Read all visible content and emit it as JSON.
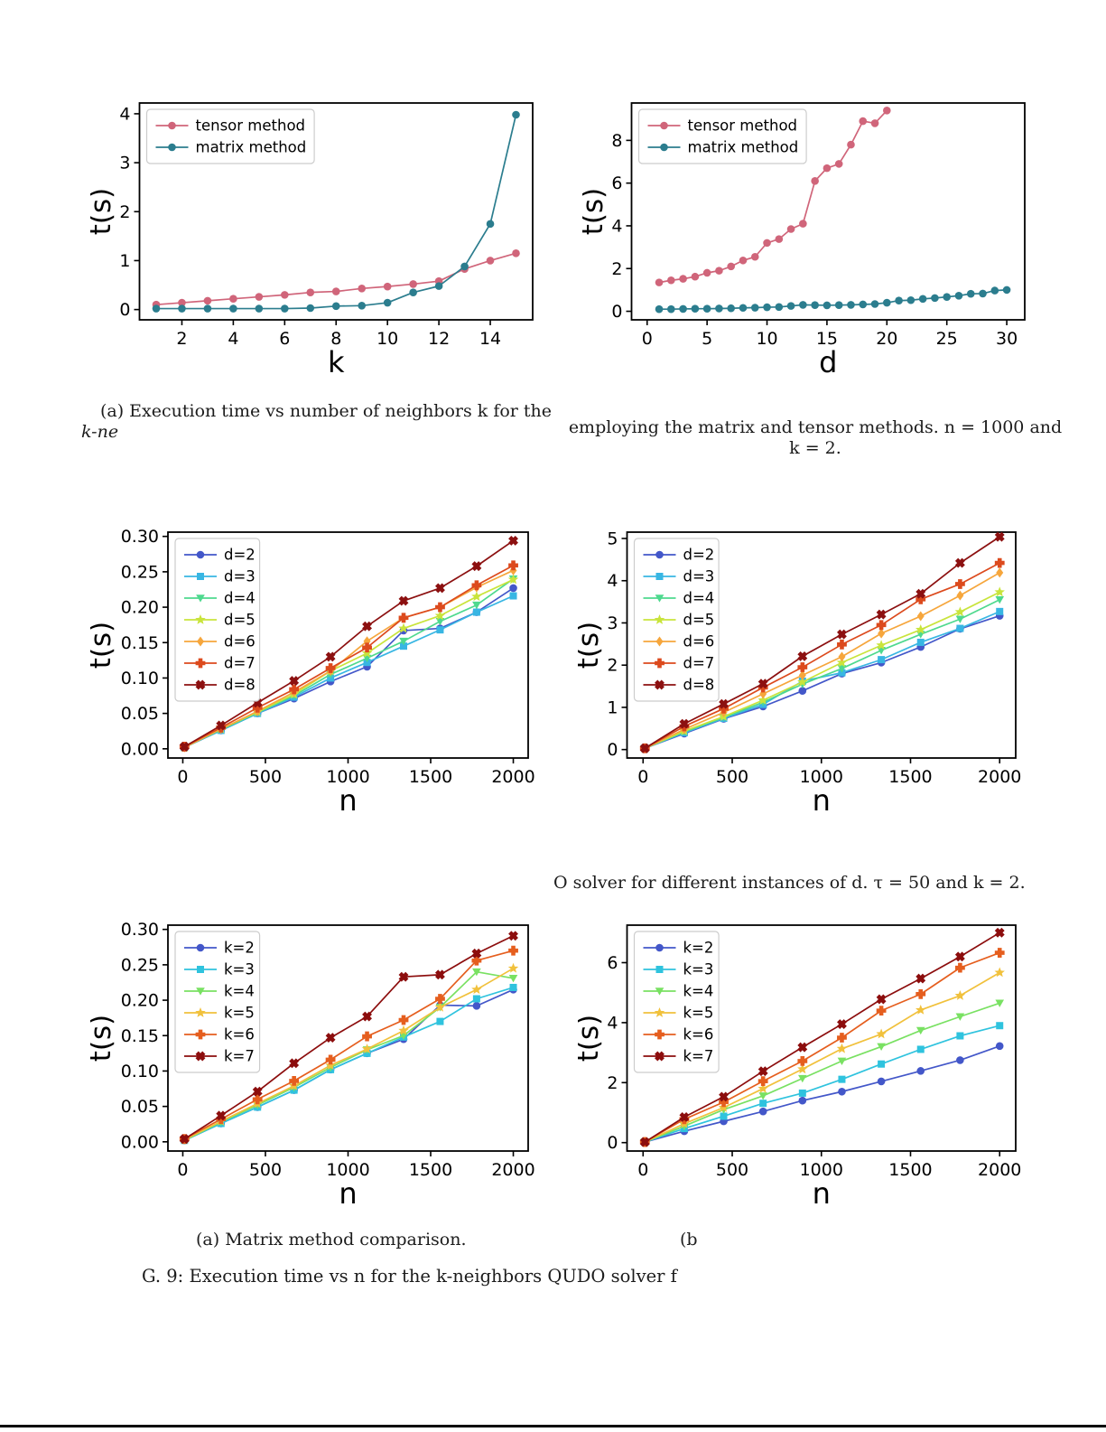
{
  "captions": {
    "top_left": {
      "line1": "(a) Execution time vs number of neighbors k for the",
      "line2": "k-ne"
    },
    "top_right": {
      "line1": "employing the matrix and tensor methods. n = 1000 and",
      "line2": "k = 2."
    },
    "middle_right_text": "O solver for different instances of d. τ = 50 and k = 2.",
    "bottom_left": "(a) Matrix method comparison.",
    "bottom_right": "(b",
    "figure": "G. 9: Execution time vs n for the k-neighbors QUDO solver f"
  },
  "chart_data": [
    {
      "id": "time-vs-k",
      "type": "line",
      "xlabel": "k",
      "ylabel": "t(s)",
      "xlim": [
        0.35,
        15.65
      ],
      "ylim": [
        -0.21,
        4.22
      ],
      "xticks": [
        2,
        4,
        6,
        8,
        10,
        12,
        14
      ],
      "xtick_labels": [
        "2",
        "4",
        "6",
        "8",
        "10",
        "12",
        "14"
      ],
      "yticks": [
        0,
        1,
        2,
        3,
        4
      ],
      "ytick_labels": [
        "0",
        "1",
        "2",
        "3",
        "4"
      ],
      "grid": false,
      "legend_position": "top-left",
      "series": [
        {
          "name": "tensor method",
          "color": "#d0657a",
          "marker": "circle",
          "x": [
            1,
            2,
            3,
            4,
            5,
            6,
            7,
            8,
            9,
            10,
            11,
            12,
            13,
            14,
            15
          ],
          "y": [
            0.1,
            0.14,
            0.18,
            0.22,
            0.26,
            0.3,
            0.35,
            0.37,
            0.43,
            0.47,
            0.52,
            0.58,
            0.83,
            1.0,
            1.15
          ]
        },
        {
          "name": "matrix method",
          "color": "#2b7d8e",
          "marker": "circle",
          "x": [
            1,
            2,
            3,
            4,
            5,
            6,
            7,
            8,
            9,
            10,
            11,
            12,
            13,
            14,
            15
          ],
          "y": [
            0.02,
            0.02,
            0.02,
            0.02,
            0.02,
            0.02,
            0.03,
            0.07,
            0.08,
            0.14,
            0.35,
            0.48,
            0.88,
            1.75,
            3.98
          ]
        }
      ]
    },
    {
      "id": "time-vs-d",
      "type": "line",
      "xlabel": "d",
      "ylabel": "t(s)",
      "xlim": [
        -1.3,
        31.5
      ],
      "ylim": [
        -0.4,
        9.75
      ],
      "xticks": [
        0,
        5,
        10,
        15,
        20,
        25,
        30
      ],
      "xtick_labels": [
        "0",
        "5",
        "10",
        "15",
        "20",
        "25",
        "30"
      ],
      "yticks": [
        0,
        2,
        4,
        6,
        8
      ],
      "ytick_labels": [
        "0",
        "2",
        "4",
        "6",
        "8"
      ],
      "grid": false,
      "legend_position": "top-left",
      "series": [
        {
          "name": "tensor method",
          "color": "#d0657a",
          "marker": "circle",
          "x": [
            1,
            2,
            3,
            4,
            5,
            6,
            7,
            8,
            9,
            10,
            11,
            12,
            13,
            14,
            15,
            16,
            17,
            18,
            19,
            20
          ],
          "y": [
            1.35,
            1.45,
            1.52,
            1.62,
            1.8,
            1.9,
            2.1,
            2.38,
            2.55,
            3.2,
            3.38,
            3.85,
            4.1,
            6.1,
            6.7,
            6.9,
            7.8,
            8.9,
            8.8,
            9.4
          ]
        },
        {
          "name": "matrix method",
          "color": "#2b7d8e",
          "marker": "circle",
          "x": [
            1,
            2,
            3,
            4,
            5,
            6,
            7,
            8,
            9,
            10,
            11,
            12,
            13,
            14,
            15,
            16,
            17,
            18,
            19,
            20,
            21,
            22,
            23,
            24,
            25,
            26,
            27,
            28,
            29,
            30
          ],
          "y": [
            0.1,
            0.1,
            0.11,
            0.12,
            0.12,
            0.13,
            0.14,
            0.16,
            0.17,
            0.19,
            0.2,
            0.25,
            0.3,
            0.29,
            0.28,
            0.29,
            0.3,
            0.32,
            0.34,
            0.4,
            0.5,
            0.52,
            0.58,
            0.62,
            0.67,
            0.73,
            0.82,
            0.83,
            0.97,
            1.0
          ]
        }
      ]
    },
    {
      "id": "matrix-time-vs-n-d",
      "type": "line",
      "xlabel": "n",
      "ylabel": "t(s)",
      "xlim": [
        -90,
        2090
      ],
      "ylim": [
        -0.013,
        0.306
      ],
      "xticks": [
        0,
        500,
        1000,
        1500,
        2000
      ],
      "xtick_labels": [
        "0",
        "500",
        "1000",
        "1500",
        "2000"
      ],
      "yticks": [
        0,
        0.05,
        0.1,
        0.15,
        0.2,
        0.25,
        0.3
      ],
      "ytick_labels": [
        "0.00",
        "0.05",
        "0.10",
        "0.15",
        "0.20",
        "0.25",
        "0.30"
      ],
      "grid": false,
      "legend_position": "top-left",
      "x": [
        10,
        231,
        452,
        673,
        894,
        1115,
        1336,
        1557,
        1778,
        2000
      ],
      "series": [
        {
          "name": "d=2",
          "color": "#4357c9",
          "marker": "circle",
          "y": [
            0.002,
            0.026,
            0.05,
            0.071,
            0.095,
            0.116,
            0.167,
            0.17,
            0.193,
            0.227
          ]
        },
        {
          "name": "d=3",
          "color": "#38b6e3",
          "marker": "square",
          "y": [
            0.002,
            0.026,
            0.05,
            0.073,
            0.1,
            0.122,
            0.145,
            0.168,
            0.193,
            0.216
          ]
        },
        {
          "name": "d=4",
          "color": "#4ed98e",
          "marker": "triangle-down",
          "y": [
            0.002,
            0.027,
            0.051,
            0.075,
            0.105,
            0.128,
            0.152,
            0.18,
            0.203,
            0.24
          ]
        },
        {
          "name": "d=5",
          "color": "#c9e43c",
          "marker": "star",
          "y": [
            0.002,
            0.028,
            0.052,
            0.077,
            0.11,
            0.135,
            0.17,
            0.188,
            0.215,
            0.239
          ]
        },
        {
          "name": "d=6",
          "color": "#f6a63c",
          "marker": "diamond",
          "y": [
            0.002,
            0.028,
            0.053,
            0.08,
            0.11,
            0.152,
            0.185,
            0.2,
            0.228,
            0.252
          ]
        },
        {
          "name": "d=7",
          "color": "#dc4a1d",
          "marker": "plus",
          "y": [
            0.003,
            0.03,
            0.058,
            0.084,
            0.114,
            0.143,
            0.185,
            0.2,
            0.231,
            0.259
          ]
        },
        {
          "name": "d=8",
          "color": "#8c1010",
          "marker": "x",
          "y": [
            0.003,
            0.033,
            0.065,
            0.096,
            0.13,
            0.173,
            0.209,
            0.227,
            0.258,
            0.294
          ]
        }
      ]
    },
    {
      "id": "tensor-time-vs-n-d",
      "type": "line",
      "xlabel": "n",
      "ylabel": "t(s)",
      "xlim": [
        -90,
        2090
      ],
      "ylim": [
        -0.2,
        5.15
      ],
      "xticks": [
        0,
        500,
        1000,
        1500,
        2000
      ],
      "xtick_labels": [
        "0",
        "500",
        "1000",
        "1500",
        "2000"
      ],
      "yticks": [
        0,
        1,
        2,
        3,
        4,
        5
      ],
      "ytick_labels": [
        "0",
        "1",
        "2",
        "3",
        "4",
        "5"
      ],
      "grid": false,
      "legend_position": "top-left",
      "x": [
        10,
        231,
        452,
        673,
        894,
        1115,
        1336,
        1557,
        1778,
        2000
      ],
      "series": [
        {
          "name": "d=2",
          "color": "#4357c9",
          "marker": "circle",
          "y": [
            0.03,
            0.38,
            0.73,
            1.02,
            1.39,
            1.8,
            2.06,
            2.43,
            2.86,
            3.17
          ]
        },
        {
          "name": "d=3",
          "color": "#38b6e3",
          "marker": "square",
          "y": [
            0.03,
            0.4,
            0.74,
            1.07,
            1.62,
            1.82,
            2.13,
            2.54,
            2.87,
            3.27
          ]
        },
        {
          "name": "d=4",
          "color": "#4ed98e",
          "marker": "triangle-down",
          "y": [
            0.03,
            0.42,
            0.76,
            1.12,
            1.55,
            1.92,
            2.35,
            2.73,
            3.09,
            3.55
          ]
        },
        {
          "name": "d=5",
          "color": "#c9e43c",
          "marker": "star",
          "y": [
            0.03,
            0.44,
            0.78,
            1.17,
            1.6,
            2.06,
            2.47,
            2.84,
            3.26,
            3.73
          ]
        },
        {
          "name": "d=6",
          "color": "#f6a63c",
          "marker": "diamond",
          "y": [
            0.03,
            0.48,
            0.88,
            1.32,
            1.76,
            2.2,
            2.75,
            3.16,
            3.65,
            4.19
          ]
        },
        {
          "name": "d=7",
          "color": "#dc4a1d",
          "marker": "plus",
          "y": [
            0.03,
            0.55,
            0.97,
            1.47,
            1.95,
            2.49,
            2.95,
            3.56,
            3.92,
            4.42
          ]
        },
        {
          "name": "d=8",
          "color": "#8c1010",
          "marker": "x",
          "y": [
            0.03,
            0.61,
            1.08,
            1.56,
            2.21,
            2.73,
            3.2,
            3.69,
            4.42,
            5.04
          ]
        }
      ]
    },
    {
      "id": "matrix-time-vs-n-k",
      "type": "line",
      "xlabel": "n",
      "ylabel": "t(s)",
      "xlim": [
        -90,
        2090
      ],
      "ylim": [
        -0.013,
        0.306
      ],
      "xticks": [
        0,
        500,
        1000,
        1500,
        2000
      ],
      "xtick_labels": [
        "0",
        "500",
        "1000",
        "1500",
        "2000"
      ],
      "yticks": [
        0,
        0.05,
        0.1,
        0.15,
        0.2,
        0.25,
        0.3
      ],
      "ytick_labels": [
        "0.00",
        "0.05",
        "0.10",
        "0.15",
        "0.20",
        "0.25",
        "0.30"
      ],
      "grid": false,
      "legend_position": "top-left",
      "x": [
        10,
        231,
        452,
        673,
        894,
        1115,
        1336,
        1557,
        1778,
        2000
      ],
      "series": [
        {
          "name": "k=2",
          "color": "#4357c9",
          "marker": "circle",
          "y": [
            0.002,
            0.026,
            0.049,
            0.073,
            0.102,
            0.125,
            0.145,
            0.193,
            0.192,
            0.215
          ]
        },
        {
          "name": "k=3",
          "color": "#2fc3de",
          "marker": "square",
          "y": [
            0.002,
            0.026,
            0.049,
            0.073,
            0.102,
            0.125,
            0.148,
            0.17,
            0.202,
            0.218
          ]
        },
        {
          "name": "k=4",
          "color": "#79e162",
          "marker": "triangle-down",
          "y": [
            0.002,
            0.028,
            0.052,
            0.077,
            0.105,
            0.13,
            0.15,
            0.19,
            0.24,
            0.231
          ]
        },
        {
          "name": "k=5",
          "color": "#f1c13c",
          "marker": "star",
          "y": [
            0.003,
            0.029,
            0.054,
            0.079,
            0.108,
            0.131,
            0.157,
            0.19,
            0.215,
            0.245
          ]
        },
        {
          "name": "k=6",
          "color": "#e55e1e",
          "marker": "plus",
          "y": [
            0.004,
            0.032,
            0.06,
            0.086,
            0.116,
            0.149,
            0.172,
            0.202,
            0.256,
            0.27
          ]
        },
        {
          "name": "k=7",
          "color": "#8c0d0d",
          "marker": "x",
          "y": [
            0.004,
            0.037,
            0.071,
            0.111,
            0.147,
            0.177,
            0.233,
            0.236,
            0.266,
            0.291
          ]
        }
      ]
    },
    {
      "id": "tensor-time-vs-n-k",
      "type": "line",
      "xlabel": "n",
      "ylabel": "t(s)",
      "xlim": [
        -90,
        2090
      ],
      "ylim": [
        -0.28,
        7.25
      ],
      "xticks": [
        0,
        500,
        1000,
        1500,
        2000
      ],
      "xtick_labels": [
        "0",
        "500",
        "1000",
        "1500",
        "2000"
      ],
      "yticks": [
        0,
        2,
        4,
        6
      ],
      "ytick_labels": [
        "0",
        "2",
        "4",
        "6"
      ],
      "grid": false,
      "legend_position": "top-left",
      "x": [
        10,
        231,
        452,
        673,
        894,
        1115,
        1336,
        1557,
        1778,
        2000
      ],
      "series": [
        {
          "name": "k=2",
          "color": "#4357c9",
          "marker": "circle",
          "y": [
            0.02,
            0.38,
            0.71,
            1.04,
            1.4,
            1.7,
            2.04,
            2.39,
            2.75,
            3.22
          ]
        },
        {
          "name": "k=3",
          "color": "#2fc3de",
          "marker": "square",
          "y": [
            0.02,
            0.47,
            0.88,
            1.31,
            1.65,
            2.11,
            2.62,
            3.11,
            3.56,
            3.9
          ]
        },
        {
          "name": "k=4",
          "color": "#79e162",
          "marker": "triangle-down",
          "y": [
            0.02,
            0.55,
            1.1,
            1.56,
            2.14,
            2.72,
            3.2,
            3.74,
            4.2,
            4.65
          ]
        },
        {
          "name": "k=5",
          "color": "#f1c13c",
          "marker": "star",
          "y": [
            0.02,
            0.63,
            1.17,
            1.8,
            2.45,
            3.13,
            3.62,
            4.42,
            4.9,
            5.67
          ]
        },
        {
          "name": "k=6",
          "color": "#e55e1e",
          "marker": "plus",
          "y": [
            0.02,
            0.78,
            1.35,
            2.05,
            2.72,
            3.5,
            4.4,
            4.95,
            5.83,
            6.33
          ]
        },
        {
          "name": "k=7",
          "color": "#8c0d0d",
          "marker": "x",
          "y": [
            0.02,
            0.85,
            1.53,
            2.38,
            3.18,
            3.95,
            4.78,
            5.47,
            6.2,
            7.0
          ]
        }
      ]
    }
  ]
}
